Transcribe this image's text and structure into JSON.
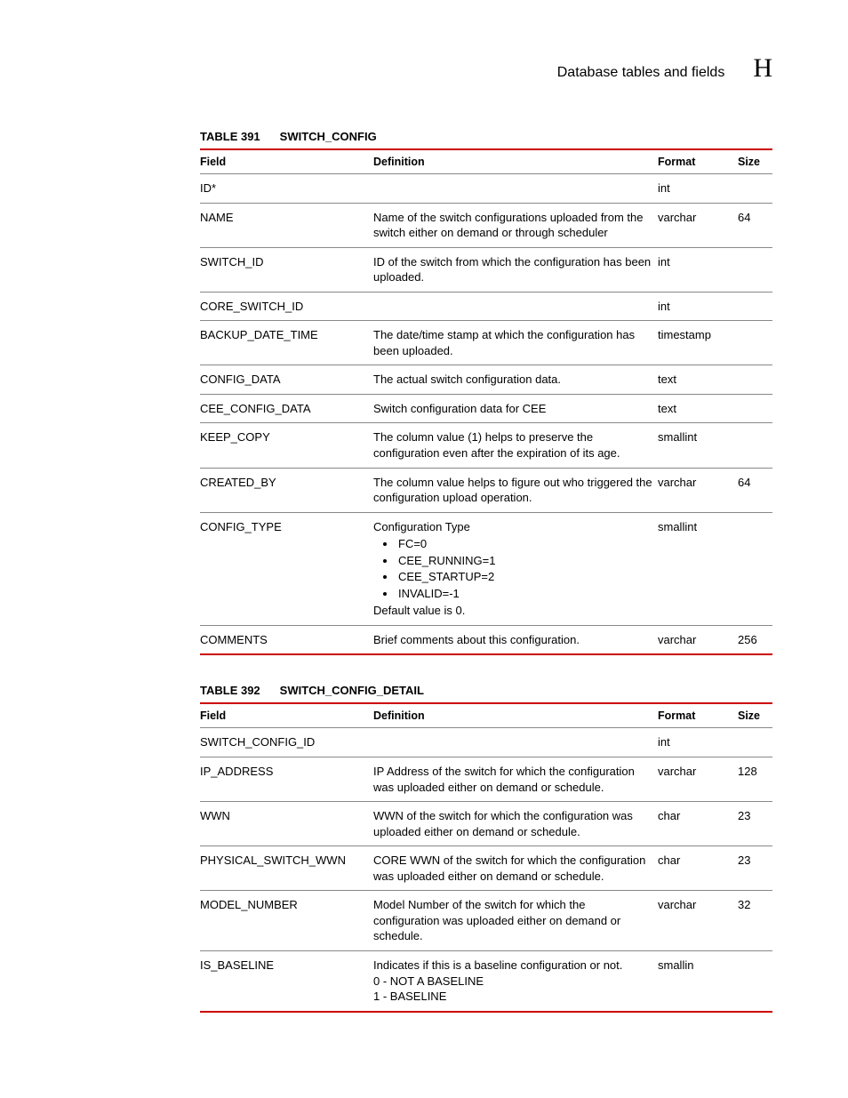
{
  "header": {
    "section_title": "Database tables and fields",
    "appendix_letter": "H"
  },
  "colors": {
    "accent": "#cc0000",
    "rule": "#888888",
    "text": "#000000",
    "bg": "#ffffff"
  },
  "columns": {
    "field": "Field",
    "definition": "Definition",
    "format": "Format",
    "size": "Size"
  },
  "tables": [
    {
      "number": "TABLE 391",
      "name": "SWITCH_CONFIG",
      "rows": [
        {
          "field": "ID*",
          "definition": "",
          "format": "int",
          "size": ""
        },
        {
          "field": "NAME",
          "definition": "Name of the switch configurations uploaded from the switch either on demand or through scheduler",
          "format": "varchar",
          "size": "64"
        },
        {
          "field": "SWITCH_ID",
          "definition": "ID of the switch from which the configuration has been uploaded.",
          "format": "int",
          "size": ""
        },
        {
          "field": "CORE_SWITCH_ID",
          "definition": "",
          "format": "int",
          "size": ""
        },
        {
          "field": "BACKUP_DATE_TIME",
          "definition": "The date/time stamp at which the configuration has been uploaded.",
          "format": "timestamp",
          "size": ""
        },
        {
          "field": "CONFIG_DATA",
          "definition": "The actual switch configuration data.",
          "format": "text",
          "size": ""
        },
        {
          "field": "CEE_CONFIG_DATA",
          "definition": "Switch configuration data for CEE",
          "format": "text",
          "size": ""
        },
        {
          "field": "KEEP_COPY",
          "definition": "The column value (1) helps to preserve the configuration even after the expiration of its age.",
          "format": "smallint",
          "size": ""
        },
        {
          "field": "CREATED_BY",
          "definition": "The column value helps to figure out who triggered the configuration upload operation.",
          "format": "varchar",
          "size": "64"
        },
        {
          "field": "CONFIG_TYPE",
          "definition_pre": "Configuration Type",
          "definition_bullets": [
            "FC=0",
            "CEE_RUNNING=1",
            "CEE_STARTUP=2",
            "INVALID=-1"
          ],
          "definition_post": "Default value is 0.",
          "format": "smallint",
          "size": ""
        },
        {
          "field": "COMMENTS",
          "definition": "Brief comments about this configuration.",
          "format": "varchar",
          "size": "256"
        }
      ]
    },
    {
      "number": "TABLE 392",
      "name": "SWITCH_CONFIG_DETAIL",
      "rows": [
        {
          "field": "SWITCH_CONFIG_ID",
          "definition": "",
          "format": "int",
          "size": ""
        },
        {
          "field": "IP_ADDRESS",
          "definition": "IP Address of the switch for which the configuration was uploaded either on demand or schedule.",
          "format": "varchar",
          "size": "128"
        },
        {
          "field": "WWN",
          "definition": "WWN of the switch for which the configuration was uploaded either on demand or schedule.",
          "format": "char",
          "size": "23"
        },
        {
          "field": "PHYSICAL_SWITCH_WWN",
          "definition": "CORE WWN of the switch for which the configuration was uploaded either on demand or schedule.",
          "format": "char",
          "size": "23"
        },
        {
          "field": "MODEL_NUMBER",
          "definition": "Model Number of the switch for which the configuration was uploaded either on demand or schedule.",
          "format": "varchar",
          "size": "32"
        },
        {
          "field": "IS_BASELINE",
          "definition_lines": [
            "Indicates if this is a baseline configuration or not.",
            "0 - NOT A BASELINE",
            "1 - BASELINE"
          ],
          "format": "smallin",
          "size": ""
        }
      ]
    }
  ]
}
